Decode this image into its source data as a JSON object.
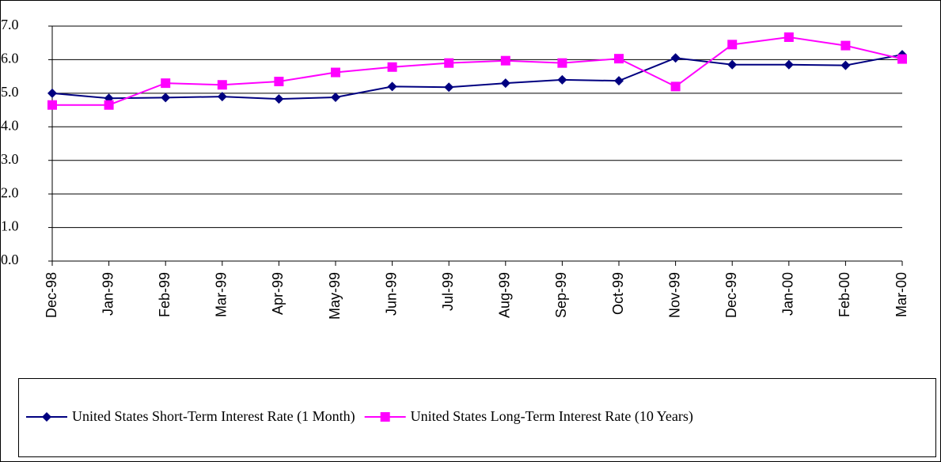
{
  "chart_data": {
    "type": "line",
    "categories": [
      "Dec-98",
      "Jan-99",
      "Feb-99",
      "Mar-99",
      "Apr-99",
      "May-99",
      "Jun-99",
      "Jul-99",
      "Aug-99",
      "Sep-99",
      "Oct-99",
      "Nov-99",
      "Dec-99",
      "Jan-00",
      "Feb-00",
      "Mar-00"
    ],
    "series": [
      {
        "name": "United States Short-Term Interest Rate (1 Month)",
        "color": "#000080",
        "marker": "diamond",
        "values": [
          5.0,
          4.85,
          4.87,
          4.9,
          4.83,
          4.88,
          5.2,
          5.18,
          5.3,
          5.4,
          5.37,
          6.05,
          5.85,
          5.85,
          5.83,
          6.15
        ]
      },
      {
        "name": "United States Long-Term Interest Rate (10 Years)",
        "color": "#ff00ff",
        "marker": "square",
        "values": [
          4.65,
          4.65,
          5.3,
          5.25,
          5.35,
          5.62,
          5.78,
          5.9,
          5.97,
          5.9,
          6.03,
          5.2,
          6.45,
          6.67,
          6.42,
          6.02
        ]
      }
    ],
    "ylim": [
      0,
      7
    ],
    "yticks": [
      {
        "value": 0,
        "label": "0.0"
      },
      {
        "value": 1,
        "label": "1.0"
      },
      {
        "value": 2,
        "label": "2.0"
      },
      {
        "value": 3,
        "label": "3.0"
      },
      {
        "value": 4,
        "label": "4.0"
      },
      {
        "value": 5,
        "label": "5.0"
      },
      {
        "value": 6,
        "label": "6.0"
      },
      {
        "value": 7,
        "label": "7.0"
      }
    ],
    "grid": true,
    "legend": "bottom"
  }
}
